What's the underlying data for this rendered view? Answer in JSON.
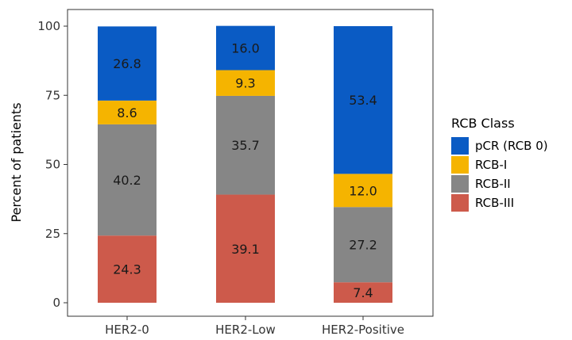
{
  "chart_data": {
    "type": "bar",
    "stacked": true,
    "title": "",
    "xlabel": "",
    "ylabel": "Percent of patients",
    "ylim": [
      0,
      100
    ],
    "yticks": [
      0,
      25,
      50,
      75,
      100
    ],
    "grid": false,
    "legend_position": "right",
    "legend_title": "RCB Class",
    "categories": [
      "HER2-0",
      "HER2-Low",
      "HER2-Positive"
    ],
    "series": [
      {
        "name": "RCB-III",
        "color": "#cd5a4b",
        "values": [
          24.3,
          39.1,
          7.4
        ],
        "labels": [
          "24.3",
          "39.1",
          "7.4"
        ]
      },
      {
        "name": "RCB-II",
        "color": "#868686",
        "values": [
          40.2,
          35.7,
          27.2
        ],
        "labels": [
          "40.2",
          "35.7",
          "27.2"
        ]
      },
      {
        "name": "RCB-I",
        "color": "#f5b400",
        "values": [
          8.6,
          9.3,
          12.0
        ],
        "labels": [
          "8.6",
          "9.3",
          "12.0"
        ]
      },
      {
        "name": "pCR (RCB 0)",
        "color": "#0a5bc4",
        "values": [
          26.8,
          16.0,
          53.4
        ],
        "labels": [
          "26.8",
          "16.0",
          "53.4"
        ]
      }
    ],
    "legend_order": [
      "pCR (RCB 0)",
      "RCB-I",
      "RCB-II",
      "RCB-III"
    ]
  }
}
